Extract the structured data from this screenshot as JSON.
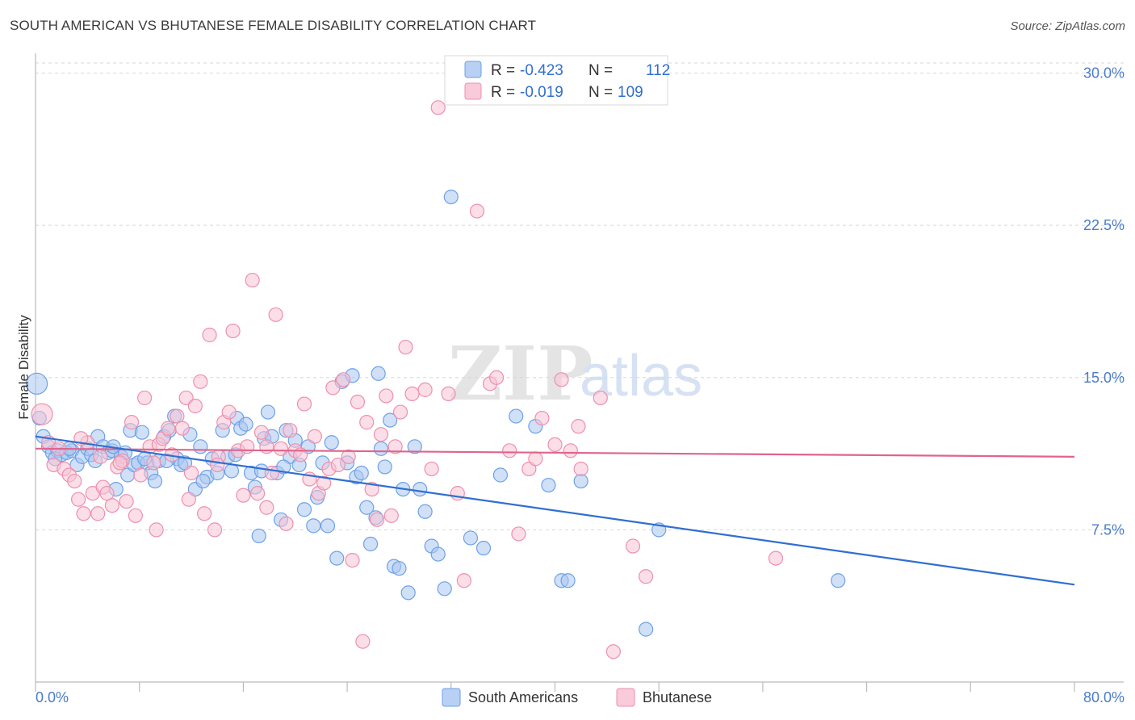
{
  "title": "SOUTH AMERICAN VS BHUTANESE FEMALE DISABILITY CORRELATION CHART",
  "source": "Source: ZipAtlas.com",
  "colors": {
    "blue": "#6ea1e8",
    "blue_fill": "#a9c7f0",
    "blue_line": "#2f6fd0",
    "pink": "#ee90ad",
    "pink_fill": "#f7c3d3",
    "pink_line": "#e0648c",
    "grid": "#d7d7d7",
    "tick_text": "#4a7cc9"
  },
  "legend": {
    "r_label": "R =",
    "n_label": "N =",
    "series": [
      {
        "r": "-0.423",
        "n": "112"
      },
      {
        "r": "-0.019",
        "n": "109"
      }
    ]
  },
  "watermark": {
    "zip": "ZIP",
    "atlas": "atlas"
  },
  "chart_data": {
    "type": "scatter",
    "title": "SOUTH AMERICAN VS BHUTANESE FEMALE DISABILITY CORRELATION CHART",
    "xlabel": "",
    "ylabel": "Female Disability",
    "xlim": [
      0,
      80
    ],
    "ylim": [
      0,
      30.5
    ],
    "x_tick_labels": [
      "0.0%",
      "80.0%"
    ],
    "y_ticks": [
      7.5,
      15.0,
      22.5,
      30.0
    ],
    "y_tick_labels": [
      "7.5%",
      "15.0%",
      "22.5%",
      "30.0%"
    ],
    "grid": "horizontal dashed",
    "legend_position": "top-center",
    "series": [
      {
        "name": "South Americans",
        "trend": {
          "x": [
            0,
            80
          ],
          "y": [
            12.1,
            4.8
          ]
        },
        "points": [
          [
            0.1,
            14.7
          ],
          [
            0.6,
            12.1
          ],
          [
            1.0,
            11.6
          ],
          [
            1.3,
            11.3
          ],
          [
            1.7,
            11.4
          ],
          [
            2.0,
            11.2
          ],
          [
            2.4,
            11.3
          ],
          [
            2.8,
            11.4
          ],
          [
            3.2,
            10.7
          ],
          [
            3.6,
            11.1
          ],
          [
            4.0,
            11.5
          ],
          [
            4.3,
            11.2
          ],
          [
            4.8,
            12.1
          ],
          [
            5.2,
            11.6
          ],
          [
            5.6,
            11.3
          ],
          [
            5.9,
            11.4
          ],
          [
            6.2,
            9.5
          ],
          [
            6.6,
            11.1
          ],
          [
            6.9,
            11.3
          ],
          [
            7.1,
            10.2
          ],
          [
            7.3,
            12.4
          ],
          [
            7.6,
            10.7
          ],
          [
            7.9,
            10.8
          ],
          [
            8.2,
            12.3
          ],
          [
            8.6,
            10.8
          ],
          [
            8.9,
            10.3
          ],
          [
            9.2,
            9.9
          ],
          [
            9.5,
            10.9
          ],
          [
            9.9,
            12.1
          ],
          [
            10.3,
            12.4
          ],
          [
            10.7,
            13.1
          ],
          [
            10.9,
            11.0
          ],
          [
            11.2,
            10.7
          ],
          [
            11.5,
            10.8
          ],
          [
            11.9,
            12.2
          ],
          [
            12.3,
            9.5
          ],
          [
            12.7,
            11.6
          ],
          [
            13.2,
            10.1
          ],
          [
            13.6,
            11.0
          ],
          [
            14.0,
            10.3
          ],
          [
            14.4,
            12.4
          ],
          [
            14.8,
            11.1
          ],
          [
            15.1,
            10.4
          ],
          [
            15.5,
            13.0
          ],
          [
            15.8,
            12.5
          ],
          [
            16.2,
            12.7
          ],
          [
            16.6,
            10.3
          ],
          [
            16.9,
            9.6
          ],
          [
            17.2,
            7.2
          ],
          [
            17.6,
            12.0
          ],
          [
            17.9,
            13.3
          ],
          [
            18.2,
            12.1
          ],
          [
            18.6,
            10.3
          ],
          [
            18.9,
            8.0
          ],
          [
            19.3,
            12.4
          ],
          [
            19.6,
            11.1
          ],
          [
            20.0,
            11.9
          ],
          [
            20.3,
            10.7
          ],
          [
            20.7,
            8.5
          ],
          [
            21.0,
            11.6
          ],
          [
            21.4,
            7.7
          ],
          [
            21.7,
            9.1
          ],
          [
            22.1,
            10.8
          ],
          [
            22.5,
            7.7
          ],
          [
            22.8,
            11.8
          ],
          [
            23.2,
            6.1
          ],
          [
            23.6,
            14.8
          ],
          [
            24.0,
            10.8
          ],
          [
            24.4,
            15.1
          ],
          [
            24.7,
            10.1
          ],
          [
            25.1,
            10.3
          ],
          [
            25.5,
            8.6
          ],
          [
            25.8,
            6.8
          ],
          [
            26.2,
            8.1
          ],
          [
            26.6,
            11.5
          ],
          [
            26.9,
            10.6
          ],
          [
            27.3,
            12.9
          ],
          [
            27.6,
            5.7
          ],
          [
            28.0,
            5.6
          ],
          [
            28.3,
            9.5
          ],
          [
            28.7,
            4.4
          ],
          [
            29.2,
            11.6
          ],
          [
            29.6,
            9.5
          ],
          [
            30.0,
            8.4
          ],
          [
            30.5,
            6.7
          ],
          [
            31.0,
            6.3
          ],
          [
            31.5,
            4.6
          ],
          [
            32.0,
            23.9
          ],
          [
            33.5,
            7.1
          ],
          [
            34.5,
            6.6
          ],
          [
            35.8,
            10.2
          ],
          [
            37.0,
            13.1
          ],
          [
            38.5,
            12.6
          ],
          [
            39.5,
            9.7
          ],
          [
            40.5,
            5.0
          ],
          [
            41.0,
            5.0
          ],
          [
            42.0,
            9.9
          ],
          [
            47.0,
            2.6
          ],
          [
            48.0,
            7.5
          ],
          [
            61.8,
            5.0
          ],
          [
            0.3,
            13.0
          ],
          [
            1.5,
            11.0
          ],
          [
            2.6,
            11.5
          ],
          [
            4.6,
            10.9
          ],
          [
            6.0,
            11.6
          ],
          [
            8.4,
            11.0
          ],
          [
            10.1,
            10.9
          ],
          [
            12.9,
            9.9
          ],
          [
            15.4,
            11.2
          ],
          [
            17.4,
            10.4
          ],
          [
            19.1,
            10.6
          ],
          [
            26.4,
            15.2
          ]
        ]
      },
      {
        "name": "Bhutanese",
        "trend": {
          "x": [
            0,
            80
          ],
          "y": [
            11.5,
            11.1
          ]
        },
        "points": [
          [
            0.5,
            13.2
          ],
          [
            1.0,
            11.8
          ],
          [
            1.4,
            10.7
          ],
          [
            1.8,
            11.5
          ],
          [
            2.2,
            10.5
          ],
          [
            2.6,
            10.2
          ],
          [
            3.0,
            9.9
          ],
          [
            3.3,
            9.0
          ],
          [
            3.7,
            8.3
          ],
          [
            4.0,
            11.8
          ],
          [
            4.4,
            9.3
          ],
          [
            4.8,
            8.3
          ],
          [
            5.2,
            9.6
          ],
          [
            5.5,
            9.3
          ],
          [
            5.9,
            8.7
          ],
          [
            6.3,
            10.6
          ],
          [
            6.7,
            10.9
          ],
          [
            7.0,
            8.9
          ],
          [
            7.4,
            12.8
          ],
          [
            7.7,
            8.2
          ],
          [
            8.1,
            10.2
          ],
          [
            8.4,
            14.0
          ],
          [
            8.8,
            11.6
          ],
          [
            9.1,
            10.8
          ],
          [
            9.5,
            11.7
          ],
          [
            9.8,
            12.0
          ],
          [
            10.2,
            12.5
          ],
          [
            10.5,
            11.2
          ],
          [
            10.9,
            13.1
          ],
          [
            11.3,
            12.5
          ],
          [
            11.6,
            14.0
          ],
          [
            12.0,
            10.3
          ],
          [
            12.3,
            13.6
          ],
          [
            12.7,
            14.8
          ],
          [
            13.0,
            8.3
          ],
          [
            13.4,
            17.1
          ],
          [
            13.8,
            7.5
          ],
          [
            14.1,
            11.1
          ],
          [
            14.5,
            12.8
          ],
          [
            14.9,
            13.3
          ],
          [
            15.2,
            17.3
          ],
          [
            15.6,
            11.4
          ],
          [
            16.0,
            9.2
          ],
          [
            16.3,
            11.6
          ],
          [
            16.7,
            19.8
          ],
          [
            17.1,
            9.3
          ],
          [
            17.4,
            12.3
          ],
          [
            17.8,
            11.6
          ],
          [
            18.2,
            10.3
          ],
          [
            18.5,
            18.1
          ],
          [
            18.9,
            11.5
          ],
          [
            19.3,
            7.8
          ],
          [
            19.6,
            12.4
          ],
          [
            20.0,
            11.4
          ],
          [
            20.4,
            11.2
          ],
          [
            20.7,
            13.7
          ],
          [
            21.1,
            10.0
          ],
          [
            21.5,
            12.1
          ],
          [
            21.8,
            9.3
          ],
          [
            22.2,
            9.8
          ],
          [
            22.6,
            10.5
          ],
          [
            22.9,
            14.5
          ],
          [
            23.3,
            10.7
          ],
          [
            23.7,
            14.9
          ],
          [
            24.1,
            11.1
          ],
          [
            24.4,
            6.0
          ],
          [
            24.8,
            13.8
          ],
          [
            25.2,
            2.0
          ],
          [
            25.5,
            12.8
          ],
          [
            25.9,
            9.5
          ],
          [
            26.3,
            8.0
          ],
          [
            26.6,
            12.2
          ],
          [
            27.0,
            14.1
          ],
          [
            27.4,
            8.2
          ],
          [
            27.7,
            11.6
          ],
          [
            28.1,
            13.3
          ],
          [
            28.5,
            16.5
          ],
          [
            29.0,
            14.2
          ],
          [
            30.0,
            14.4
          ],
          [
            30.5,
            10.5
          ],
          [
            31.0,
            28.3
          ],
          [
            31.8,
            14.2
          ],
          [
            32.5,
            9.3
          ],
          [
            33.0,
            5.0
          ],
          [
            34.0,
            23.2
          ],
          [
            35.0,
            14.7
          ],
          [
            35.5,
            15.0
          ],
          [
            36.5,
            11.4
          ],
          [
            37.2,
            7.3
          ],
          [
            38.0,
            10.5
          ],
          [
            38.5,
            11.0
          ],
          [
            39.0,
            13.0
          ],
          [
            40.0,
            11.7
          ],
          [
            40.5,
            14.9
          ],
          [
            41.2,
            11.4
          ],
          [
            41.8,
            12.6
          ],
          [
            42.0,
            10.5
          ],
          [
            43.5,
            14.0
          ],
          [
            44.5,
            1.5
          ],
          [
            46.0,
            6.7
          ],
          [
            47.0,
            5.2
          ],
          [
            57.0,
            6.1
          ],
          [
            3.5,
            12.0
          ],
          [
            5.0,
            11.1
          ],
          [
            6.5,
            10.8
          ],
          [
            9.3,
            7.5
          ],
          [
            11.8,
            9.0
          ],
          [
            14.0,
            10.7
          ],
          [
            17.8,
            8.6
          ]
        ]
      }
    ]
  },
  "bottom_legend": [
    "South Americans",
    "Bhutanese"
  ]
}
